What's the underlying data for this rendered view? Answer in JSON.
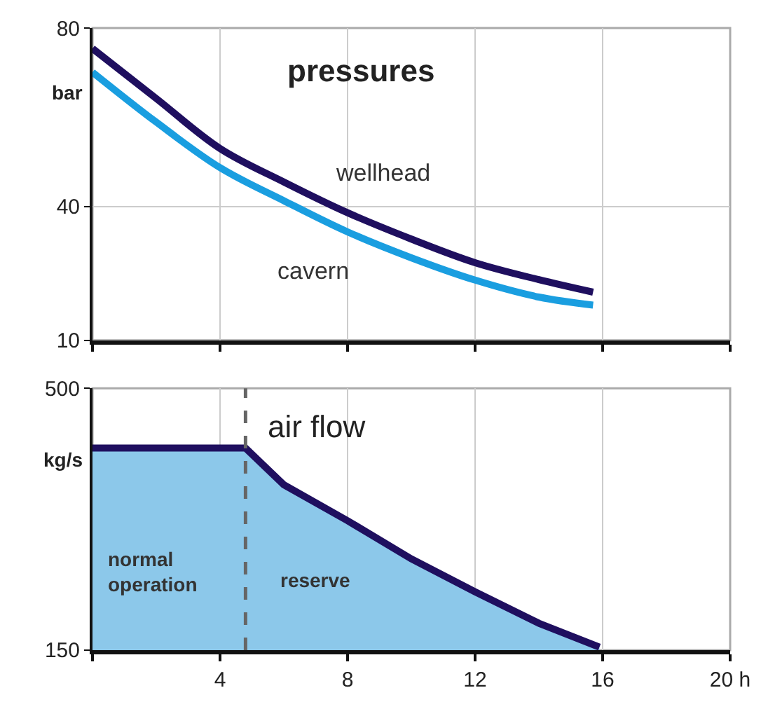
{
  "chart_data": [
    {
      "type": "line",
      "title": "pressures",
      "ylabel": "bar",
      "x": [
        0,
        2,
        4,
        6,
        8,
        10,
        12,
        14,
        15.7
      ],
      "series": [
        {
          "name": "wellhead",
          "color": "#1f0f5f",
          "values": [
            75.4,
            64.2,
            53,
            45.5,
            38.6,
            32.7,
            27.4,
            23.6,
            20.8
          ]
        },
        {
          "name": "cavern",
          "color": "#1a9ee0",
          "values": [
            70.1,
            58.9,
            48.7,
            41.3,
            34.3,
            28.5,
            23.5,
            19.7,
            17.9
          ]
        }
      ],
      "xlim": [
        0,
        20
      ],
      "xticks": [
        0,
        4,
        8,
        12,
        16,
        20
      ],
      "ylim": [
        10,
        80
      ],
      "yticks": [
        10,
        40,
        80
      ],
      "tick_labels": "y",
      "grid": true,
      "marker": "none",
      "line_style": "solid"
    },
    {
      "type": "area",
      "title": "air flow",
      "ylabel": "kg/s",
      "x": [
        0,
        4.8,
        6,
        8,
        10,
        12,
        14,
        15.9
      ],
      "series": [
        {
          "color": "#8cc8ea",
          "values": [
            420,
            420,
            371,
            323,
            272,
            228,
            186,
            154
          ]
        }
      ],
      "xlim": [
        0,
        20
      ],
      "xticks": [
        {
          "value": 0,
          "label": null
        },
        4,
        8,
        12,
        16,
        {
          "value": 20,
          "label": "20 h"
        }
      ],
      "ylim": [
        150,
        500
      ],
      "yticks": [
        150,
        500
      ],
      "ref_lines": [
        {
          "axis": "x",
          "value": 4.8,
          "color": "#666666",
          "line_style": "dashed"
        }
      ],
      "annotations": [
        "normal operation",
        "reserve"
      ],
      "grid": "x",
      "marker": "none",
      "line_style": "solid"
    }
  ]
}
